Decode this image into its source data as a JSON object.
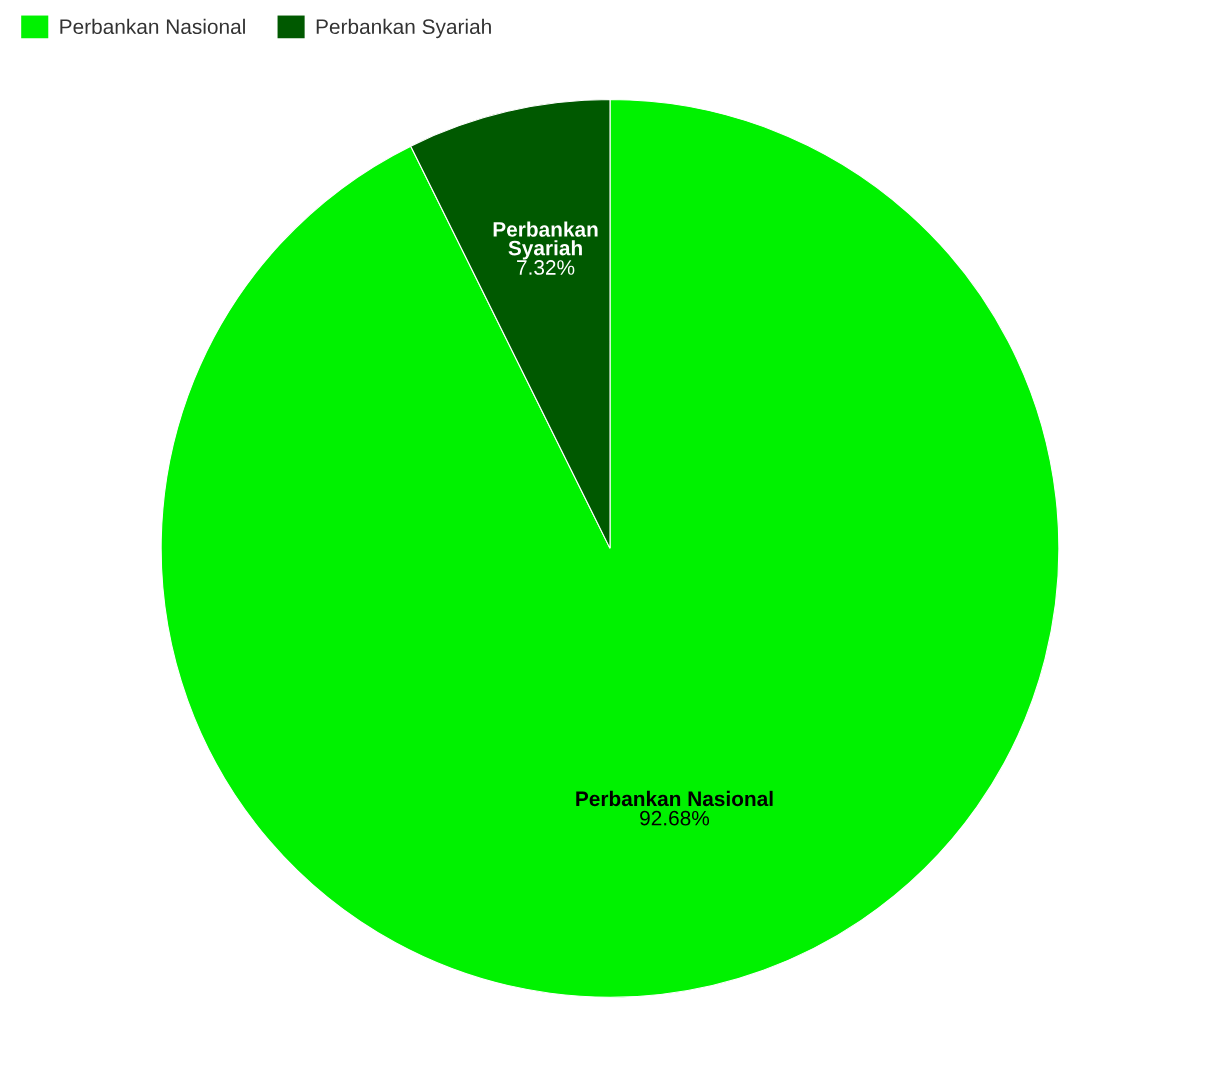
{
  "chart_data": {
    "type": "pie",
    "categories": [
      "Perbankan Nasional",
      "Perbankan Syariah"
    ],
    "values": [
      92.68,
      7.32
    ],
    "colors": [
      "#00f200",
      "#005900"
    ],
    "value_labels": [
      "92.68%",
      "7.32%"
    ],
    "legend": "top left"
  }
}
